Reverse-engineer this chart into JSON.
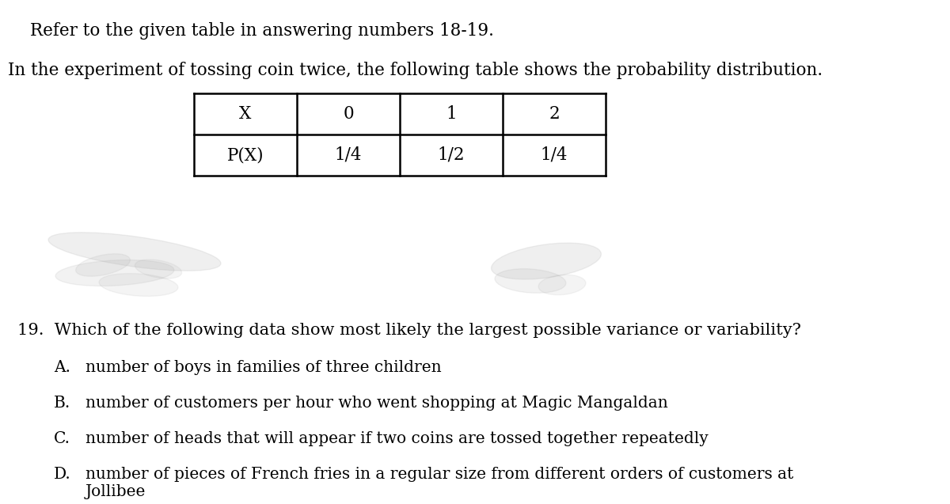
{
  "title_line1": "Refer to the given table in answering numbers 18-19.",
  "title_line2": "In the experiment of tossing coin twice, the following table shows the probability distribution.",
  "table_headers": [
    "X",
    "0",
    "1",
    "2"
  ],
  "table_row2": [
    "P(X)",
    "1/4",
    "1/2",
    "1/4"
  ],
  "question": "19.  Which of the following data show most likely the largest possible variance or variability?",
  "choice_letters": [
    "A.",
    "B.",
    "C.",
    "D."
  ],
  "choice_texts": [
    "number of boys in families of three children",
    "number of customers per hour who went shopping at Magic Mangaldan",
    "number of heads that will appear if two coins are tossed together repeatedly",
    "number of pieces of French fries in a regular size from different orders of customers at\nJollibee"
  ],
  "bg_color": "#ffffff",
  "text_color": "#000000",
  "font_size_title": 15.5,
  "font_size_table": 15.5,
  "font_size_question": 15.0,
  "font_size_choices": 14.5
}
